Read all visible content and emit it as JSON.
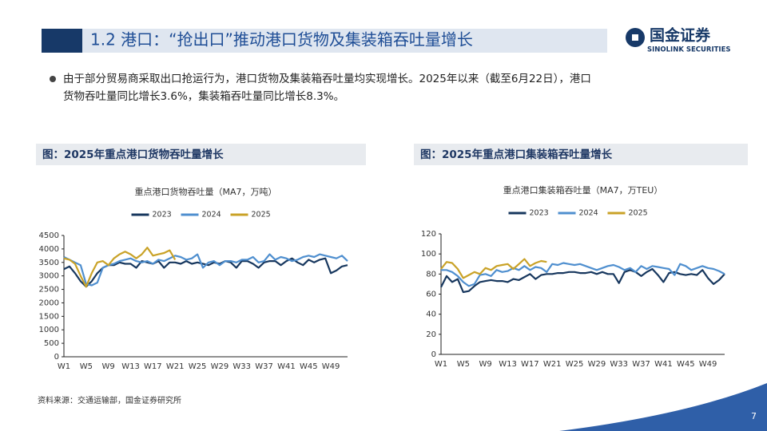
{
  "header": {
    "title": "1.2 港口：“抢出口”推动港口货物及集装箱吞吐量增长",
    "logo_cn": "国金证券",
    "logo_en": "SINOLINK SECURITIES"
  },
  "bullet": [
    "由于部分贸易商采取出口抢运行为，港口货物及集装箱吞吐量均实现增长。2025年以来（截至6月22日），港口",
    "货物吞吐量同比增长3.6%，集装箱吞吐量同比增长8.3%。"
  ],
  "chart_data": [
    {
      "type": "line",
      "caption": "图：2025年重点港口货物吞吐量增长",
      "title": "重点港口货物吞吐量（MA7，万吨）",
      "categories": [
        "W1",
        null,
        null,
        null,
        "W5",
        null,
        null,
        null,
        "W9",
        null,
        null,
        null,
        "W13",
        null,
        null,
        null,
        "W17",
        null,
        null,
        null,
        "W21",
        null,
        null,
        null,
        "W25",
        null,
        null,
        null,
        "W29",
        null,
        null,
        null,
        "W33",
        null,
        null,
        null,
        "W37",
        null,
        null,
        null,
        "W41",
        null,
        null,
        null,
        "W45",
        null,
        null,
        null,
        "W49",
        null,
        null,
        null
      ],
      "ylim": [
        0,
        4500
      ],
      "yticks": [
        0,
        500,
        1000,
        1500,
        2000,
        2500,
        3000,
        3500,
        4000,
        4500
      ],
      "grid": false,
      "series": [
        {
          "name": "2023",
          "color": "#17375e",
          "values": [
            3250,
            3350,
            3100,
            2800,
            2600,
            2800,
            3100,
            3300,
            3400,
            3400,
            3500,
            3450,
            3450,
            3300,
            3550,
            3500,
            3450,
            3550,
            3300,
            3500,
            3500,
            3450,
            3550,
            3450,
            3500,
            3450,
            3400,
            3500,
            3450,
            3550,
            3500,
            3300,
            3550,
            3550,
            3450,
            3300,
            3500,
            3550,
            3550,
            3400,
            3550,
            3650,
            3500,
            3400,
            3600,
            3500,
            3600,
            3650,
            3100,
            3200,
            3350,
            3400
          ]
        },
        {
          "name": "2024",
          "color": "#4f8fcf",
          "values": [
            3700,
            3600,
            3500,
            3400,
            2700,
            2650,
            2750,
            3300,
            3400,
            3450,
            3550,
            3600,
            3650,
            3550,
            3500,
            3550,
            3450,
            3600,
            3550,
            3650,
            3750,
            3700,
            3600,
            3650,
            3800,
            3300,
            3500,
            3550,
            3400,
            3550,
            3550,
            3500,
            3600,
            3600,
            3700,
            3500,
            3550,
            3800,
            3600,
            3700,
            3650,
            3550,
            3600,
            3700,
            3750,
            3700,
            3800,
            3750,
            3700,
            3650,
            3750,
            3550
          ]
        },
        {
          "name": "2025",
          "color": "#c9a227",
          "values": [
            3650,
            3600,
            3450,
            3000,
            2600,
            3100,
            3500,
            3550,
            3400,
            3650,
            3800,
            3900,
            3800,
            3650,
            3800,
            4050,
            3750,
            3800,
            3850,
            3950,
            3600,
            null,
            null,
            null,
            null,
            null,
            null,
            null,
            null,
            null,
            null,
            null,
            null,
            null,
            null,
            null,
            null,
            null,
            null,
            null,
            null,
            null,
            null,
            null,
            null,
            null,
            null,
            null,
            null,
            null,
            null,
            null
          ]
        }
      ]
    },
    {
      "type": "line",
      "caption": "图：2025年重点港口集装箱吞吐量增长",
      "title": "重点港口集装箱吞吐量（MA7，万TEU）",
      "categories": [
        "W1",
        null,
        null,
        null,
        "W5",
        null,
        null,
        null,
        "W9",
        null,
        null,
        null,
        "W13",
        null,
        null,
        null,
        "W17",
        null,
        null,
        null,
        "W21",
        null,
        null,
        null,
        "W25",
        null,
        null,
        null,
        "W29",
        null,
        null,
        null,
        "W33",
        null,
        null,
        null,
        "W37",
        null,
        null,
        null,
        "W41",
        null,
        null,
        null,
        "W45",
        null,
        null,
        null,
        "W49",
        null,
        null,
        null
      ],
      "ylim": [
        0,
        120
      ],
      "yticks": [
        0,
        20,
        40,
        60,
        80,
        100,
        120
      ],
      "grid": false,
      "series": [
        {
          "name": "2023",
          "color": "#17375e",
          "values": [
            67,
            78,
            72,
            75,
            62,
            63,
            68,
            72,
            73,
            74,
            73,
            73,
            72,
            75,
            74,
            77,
            80,
            75,
            79,
            80,
            80,
            81,
            81,
            82,
            82,
            81,
            81,
            82,
            80,
            82,
            80,
            80,
            71,
            82,
            84,
            82,
            78,
            82,
            85,
            79,
            72,
            81,
            82,
            80,
            79,
            80,
            79,
            84,
            76,
            70,
            74,
            80
          ]
        },
        {
          "name": "2024",
          "color": "#4f8fcf",
          "values": [
            84,
            84,
            82,
            78,
            72,
            68,
            70,
            79,
            80,
            78,
            84,
            82,
            83,
            86,
            84,
            88,
            84,
            87,
            86,
            82,
            90,
            89,
            91,
            90,
            89,
            90,
            88,
            86,
            84,
            86,
            88,
            89,
            87,
            84,
            86,
            82,
            88,
            85,
            88,
            87,
            86,
            85,
            79,
            90,
            88,
            84,
            86,
            88,
            86,
            85,
            83,
            80
          ]
        },
        {
          "name": "2025",
          "color": "#c9a227",
          "values": [
            85,
            92,
            91,
            85,
            76,
            79,
            82,
            80,
            86,
            84,
            88,
            89,
            90,
            85,
            90,
            95,
            88,
            91,
            93,
            92,
            null,
            null,
            null,
            null,
            null,
            null,
            null,
            null,
            null,
            null,
            null,
            null,
            null,
            null,
            null,
            null,
            null,
            null,
            null,
            null,
            null,
            null,
            null,
            null,
            null,
            null,
            null,
            null,
            null,
            null,
            null,
            null
          ]
        }
      ]
    }
  ],
  "source": "资料来源：交通运输部，国金证券研究所",
  "page": "7"
}
